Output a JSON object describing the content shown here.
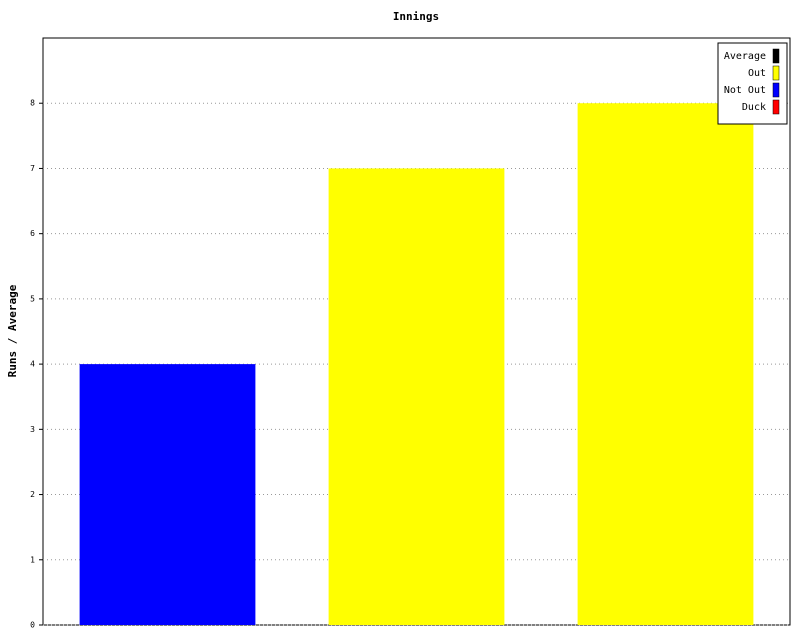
{
  "chart_data": {
    "type": "bar",
    "title": "Innings",
    "y_label": "Runs / Average",
    "categories": [
      null,
      null,
      null
    ],
    "values": [
      4,
      7,
      8
    ],
    "colors": [
      "#0000ff",
      "#ffff00",
      "#ffff00"
    ],
    "ylim": [
      0,
      9
    ],
    "yticks": [
      0,
      1,
      2,
      3,
      4,
      5,
      6,
      7,
      8
    ],
    "grid": true,
    "legend": [
      {
        "name": "Average",
        "color": "#000000"
      },
      {
        "name": "Out",
        "color": "#ffff00"
      },
      {
        "name": "Not Out",
        "color": "#0000ff"
      },
      {
        "name": "Duck",
        "color": "#ff0000"
      }
    ],
    "legend_position": "upper right"
  }
}
